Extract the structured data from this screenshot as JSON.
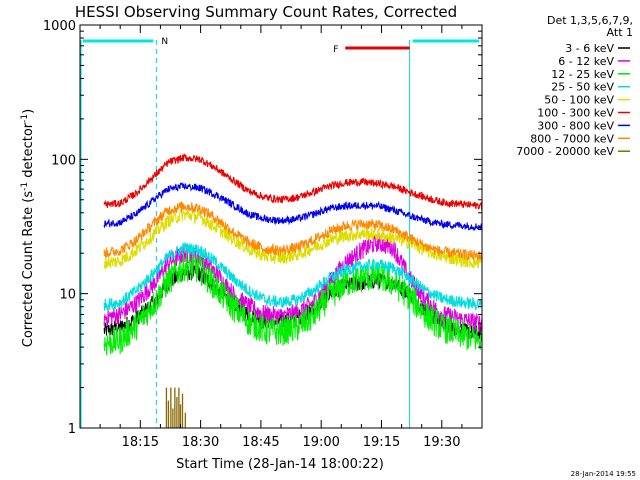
{
  "chart_data": {
    "type": "line",
    "title": "HESSI Observing Summary Count Rates, Corrected",
    "xlabel": "Start Time (28-Jan-14 18:00:22)",
    "ylabel": "Corrected Count Rate (s",
    "ylabel_sup1": "-1",
    "ylabel_mid": " detector",
    "ylabel_sup2": "-1",
    "ylabel_end": ")",
    "y_scale": "log",
    "ylim": [
      1,
      1000
    ],
    "xlim_minutes": [
      0,
      100
    ],
    "x_ticks": [
      {
        "label": "18:15",
        "minutes": 15
      },
      {
        "label": "18:30",
        "minutes": 30
      },
      {
        "label": "18:45",
        "minutes": 45
      },
      {
        "label": "19:00",
        "minutes": 60
      },
      {
        "label": "19:15",
        "minutes": 75
      },
      {
        "label": "19:30",
        "minutes": 90
      }
    ],
    "y_ticks": [
      {
        "label": "1",
        "value": 1
      },
      {
        "label": "10",
        "value": 10
      },
      {
        "label": "100",
        "value": 100
      },
      {
        "label": "1000",
        "value": 1000
      }
    ],
    "legend_header": [
      "Det 1,3,5,6,7,9,",
      "Att 1"
    ],
    "legend_position": "right",
    "timestamp": "28-Jan-2014 19:55",
    "night_flags": [
      {
        "label": "N",
        "start": 0,
        "end": 19,
        "color": "#00e5e5"
      },
      {
        "label": "",
        "start": 82,
        "end": 100,
        "color": "#00e5e5"
      }
    ],
    "flare_flags": [
      {
        "label": "F",
        "start": 65,
        "end": 82,
        "color": "#e00000"
      }
    ],
    "day_night_boundaries": [
      19,
      82,
      100
    ],
    "series": [
      {
        "name": "3 - 6 keV",
        "color": "#000000",
        "x": [
          6,
          10,
          14,
          19,
          22,
          26,
          30,
          34,
          38,
          42,
          46,
          50,
          54,
          58,
          62,
          66,
          70,
          74,
          78,
          82,
          86,
          90,
          96,
          100
        ],
        "values": [
          5.3,
          5.6,
          6.5,
          9,
          12,
          14.5,
          14,
          11,
          8.5,
          7,
          6.3,
          6.2,
          6.6,
          7.5,
          10,
          11.5,
          12,
          12.5,
          12,
          10,
          7.5,
          6,
          5.2,
          5
        ]
      },
      {
        "name": "6 - 12 keV",
        "color": "#dd00dd",
        "x": [
          6,
          10,
          14,
          19,
          22,
          26,
          30,
          34,
          38,
          42,
          46,
          50,
          54,
          58,
          62,
          66,
          70,
          74,
          78,
          82,
          86,
          90,
          96,
          100
        ],
        "values": [
          6.6,
          7,
          8.5,
          12.5,
          17,
          20,
          18.5,
          14,
          10,
          8,
          7,
          6.8,
          7.2,
          8.5,
          12,
          17,
          21,
          24,
          22,
          13,
          9,
          7,
          6.3,
          6
        ]
      },
      {
        "name": "12 - 25 keV",
        "color": "#00ee00",
        "x": [
          6,
          10,
          14,
          19,
          22,
          26,
          30,
          34,
          38,
          42,
          46,
          50,
          54,
          58,
          62,
          66,
          70,
          74,
          78,
          82,
          86,
          90,
          96,
          100
        ],
        "values": [
          4.3,
          4.5,
          5.8,
          9,
          12.5,
          16,
          15,
          11,
          8,
          6.2,
          5.3,
          5.2,
          5.6,
          6.8,
          9.5,
          12,
          13,
          13.5,
          12,
          9.5,
          7,
          5.6,
          4.8,
          4.5
        ]
      },
      {
        "name": "25 - 50 keV",
        "color": "#00dddd",
        "x": [
          6,
          10,
          14,
          19,
          22,
          26,
          30,
          34,
          38,
          42,
          46,
          50,
          54,
          58,
          62,
          66,
          70,
          74,
          78,
          82,
          86,
          90,
          96,
          100
        ],
        "values": [
          8.3,
          8.6,
          10.5,
          15,
          19,
          22,
          21,
          17,
          13,
          10.5,
          9,
          8.6,
          9,
          10.5,
          13,
          15,
          16,
          16.5,
          15.5,
          13,
          10.5,
          9.2,
          8.5,
          8.3
        ]
      },
      {
        "name": "50 - 100 keV",
        "color": "#dddd00",
        "x": [
          6,
          10,
          14,
          19,
          22,
          26,
          30,
          34,
          38,
          42,
          46,
          50,
          54,
          58,
          62,
          66,
          70,
          74,
          78,
          82,
          86,
          90,
          96,
          100
        ],
        "values": [
          17,
          17.5,
          21,
          29,
          35,
          39,
          37,
          31,
          25.5,
          21.5,
          19,
          18.5,
          19.5,
          22,
          25,
          27,
          28,
          27.5,
          26,
          24,
          21,
          19,
          17.5,
          17
        ]
      },
      {
        "name": "100 - 300 keV",
        "color": "#ee0000",
        "x": [
          6,
          10,
          14,
          19,
          22,
          26,
          30,
          34,
          38,
          42,
          46,
          50,
          54,
          58,
          62,
          66,
          70,
          74,
          78,
          82,
          86,
          90,
          96,
          100
        ],
        "values": [
          46,
          47,
          56,
          78,
          95,
          103,
          100,
          85,
          70,
          58,
          52,
          50,
          52,
          57,
          63,
          67,
          68,
          66,
          63,
          57,
          52,
          48,
          46,
          45
        ]
      },
      {
        "name": "300 - 800 keV",
        "color": "#0000ee",
        "x": [
          6,
          10,
          14,
          19,
          22,
          26,
          30,
          34,
          38,
          42,
          46,
          50,
          54,
          58,
          62,
          66,
          70,
          74,
          78,
          82,
          86,
          90,
          96,
          100
        ],
        "values": [
          33,
          34,
          39,
          52,
          60,
          63,
          61,
          54,
          46,
          39,
          36,
          35,
          36,
          39,
          43,
          45,
          45.5,
          45,
          42,
          38,
          35,
          33,
          32,
          31.5
        ]
      },
      {
        "name": "800 - 7000 keV",
        "color": "#ff8800",
        "x": [
          6,
          10,
          14,
          19,
          22,
          26,
          30,
          34,
          38,
          42,
          46,
          50,
          54,
          58,
          62,
          66,
          70,
          74,
          78,
          82,
          86,
          90,
          96,
          100
        ],
        "values": [
          20,
          21,
          25,
          35,
          42,
          45,
          43,
          36,
          29,
          24,
          21.5,
          21,
          22,
          25,
          29,
          32,
          33,
          32.5,
          30,
          26,
          22.5,
          20.5,
          19.5,
          19
        ]
      },
      {
        "name": "7000 - 20000 keV",
        "color": "#886600",
        "x": [],
        "values": []
      }
    ],
    "spikes_7000_20000": [
      {
        "minutes": 21.5,
        "value": 2.0
      },
      {
        "minutes": 22.0,
        "value": 1.6
      },
      {
        "minutes": 22.6,
        "value": 2.0
      },
      {
        "minutes": 23.1,
        "value": 1.4
      },
      {
        "minutes": 23.6,
        "value": 2.0
      },
      {
        "minutes": 24.1,
        "value": 1.7
      },
      {
        "minutes": 24.6,
        "value": 2.0
      },
      {
        "minutes": 25.0,
        "value": 1.5
      },
      {
        "minutes": 25.5,
        "value": 1.8
      },
      {
        "minutes": 26.2,
        "value": 1.3
      }
    ]
  }
}
